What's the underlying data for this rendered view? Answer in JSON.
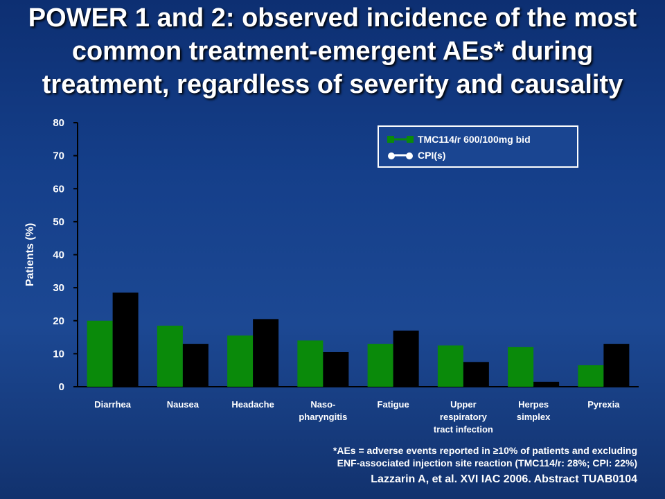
{
  "slide": {
    "title": "POWER 1 and 2: observed incidence of the most common treatment-emergent AEs* during treatment, regardless of severity and causality",
    "footnote_line1": "*AEs = adverse events reported in ≥10% of patients and excluding",
    "footnote_line2": "ENF-associated injection site reaction (TMC114/r: 28%; CPI: 22%)",
    "citation": "Lazzarin A, et al. XVI IAC 2006. Abstract TUAB0104"
  },
  "colors": {
    "series1": "#0a8a0a",
    "series2": "#000000",
    "axis": "#000000",
    "legend_bg": "#1a4591",
    "text": "#ffffff"
  },
  "chart_data": {
    "type": "bar",
    "ylabel": "Patients (%)",
    "xlabel": "",
    "ylim": [
      0,
      80
    ],
    "yticks": [
      "0",
      "10",
      "20",
      "30",
      "40",
      "50",
      "60",
      "70",
      "80"
    ],
    "categories": [
      [
        "Diarrhea"
      ],
      [
        "Nausea"
      ],
      [
        "Headache"
      ],
      [
        "Naso-",
        "pharyngitis"
      ],
      [
        "Fatigue"
      ],
      [
        "Upper",
        "respiratory",
        "tract infection"
      ],
      [
        "Herpes",
        "simplex"
      ],
      [
        "Pyrexia"
      ]
    ],
    "series": [
      {
        "name": "TMC114/r 600/100mg bid",
        "values": [
          20,
          18.5,
          15.5,
          14,
          13,
          12.5,
          12,
          6.5
        ]
      },
      {
        "name": "CPI(s)",
        "values": [
          28.5,
          13,
          20.5,
          10.5,
          17,
          7.5,
          1.5,
          13
        ]
      }
    ],
    "legend_position": "top-right",
    "grid": false
  }
}
